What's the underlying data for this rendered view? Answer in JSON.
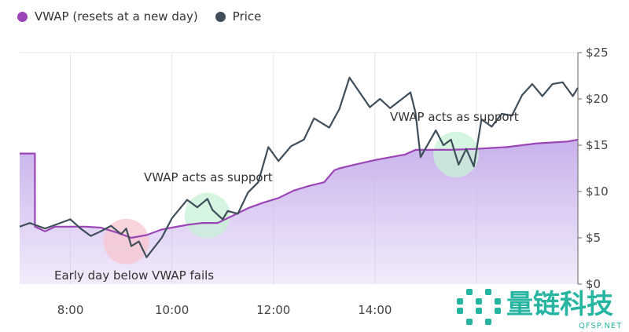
{
  "legend": {
    "vwap_label": "VWAP (resets at a new day)",
    "price_label": "Price"
  },
  "colors": {
    "vwap": "#9b46b6",
    "vwap_fill": "#c9b1ec",
    "price": "#3f4e5a",
    "grid": "#e6e6e6",
    "highlight_red": "#f7c6cf",
    "highlight_green": "#c8f2d6"
  },
  "watermark": {
    "main_text": "量链科技",
    "sub_text": "QFSP.NET",
    "accent": "#27b5a2"
  },
  "chart_data": {
    "type": "line",
    "title": "",
    "xlabel": "",
    "ylabel": "",
    "x_unit": "hour of day",
    "xlim": [
      7,
      18
    ],
    "ylim": [
      0,
      25
    ],
    "x_ticks": [
      8,
      10,
      12,
      14,
      16
    ],
    "x_tick_labels": [
      "8:00",
      "10:00",
      "12:00",
      "14:00",
      ""
    ],
    "y_ticks": [
      0,
      5,
      10,
      15,
      20,
      25
    ],
    "y_tick_labels": [
      "$0",
      "$5",
      "$10",
      "$15",
      "$20",
      "$25"
    ],
    "y_axis_side": "right",
    "grid": "vertical",
    "legend_position": "top-left",
    "series": [
      {
        "name": "VWAP (resets at a new day)",
        "style": "area",
        "x": [
          7.0,
          7.3,
          7.3,
          7.5,
          7.7,
          8.0,
          8.3,
          8.6,
          8.9,
          9.2,
          9.5,
          9.8,
          10.0,
          10.3,
          10.6,
          10.9,
          11.2,
          11.5,
          11.8,
          12.1,
          12.4,
          12.7,
          13.0,
          13.2,
          13.3,
          13.6,
          14.0,
          14.3,
          14.6,
          14.8,
          15.0,
          15.2,
          15.5,
          16.0,
          16.3,
          16.6,
          16.9,
          17.2,
          17.5,
          17.8,
          18.0
        ],
        "values": [
          14.1,
          14.1,
          6.2,
          5.7,
          6.2,
          6.2,
          6.2,
          6.1,
          5.6,
          5.0,
          5.3,
          5.9,
          6.1,
          6.4,
          6.6,
          6.6,
          7.4,
          8.2,
          8.8,
          9.3,
          10.1,
          10.6,
          11.0,
          12.3,
          12.5,
          12.9,
          13.4,
          13.7,
          14.0,
          14.5,
          14.5,
          14.5,
          14.5,
          14.6,
          14.7,
          14.8,
          15.0,
          15.2,
          15.3,
          15.4,
          15.6
        ]
      },
      {
        "name": "Price",
        "style": "line",
        "x": [
          7.0,
          7.2,
          7.5,
          7.7,
          8.0,
          8.2,
          8.4,
          8.6,
          8.8,
          9.0,
          9.1,
          9.2,
          9.35,
          9.5,
          9.8,
          10.0,
          10.3,
          10.5,
          10.7,
          10.8,
          11.0,
          11.1,
          11.3,
          11.5,
          11.7,
          11.9,
          12.1,
          12.35,
          12.6,
          12.8,
          13.1,
          13.3,
          13.5,
          13.9,
          14.1,
          14.3,
          14.7,
          14.8,
          14.9,
          15.2,
          15.35,
          15.5,
          15.65,
          15.8,
          15.95,
          16.1,
          16.3,
          16.5,
          16.7,
          16.9,
          17.1,
          17.3,
          17.5,
          17.7,
          17.9,
          18.0
        ],
        "values": [
          6.2,
          6.6,
          6.0,
          6.4,
          7.0,
          6.0,
          5.2,
          5.7,
          6.3,
          5.4,
          6.0,
          4.1,
          4.6,
          2.9,
          5.0,
          7.1,
          9.1,
          8.3,
          9.2,
          8.0,
          7.0,
          7.9,
          7.6,
          9.9,
          11.0,
          14.8,
          13.3,
          14.9,
          15.6,
          17.9,
          16.9,
          18.9,
          22.3,
          19.1,
          20.0,
          19.0,
          20.7,
          18.5,
          13.7,
          16.6,
          15.0,
          15.6,
          12.9,
          14.6,
          12.7,
          17.8,
          17.0,
          18.4,
          18.2,
          20.4,
          21.6,
          20.3,
          21.6,
          21.8,
          20.3,
          21.2
        ]
      }
    ],
    "annotations": [
      {
        "text": "Early day below VWAP fails",
        "x": 9.1,
        "y": 4.6,
        "highlight": "red"
      },
      {
        "text": "VWAP acts as support",
        "x": 10.7,
        "y": 7.4,
        "highlight": "green"
      },
      {
        "text": "VWAP acts as support",
        "x": 15.6,
        "y": 14.0,
        "highlight": "green"
      }
    ]
  }
}
